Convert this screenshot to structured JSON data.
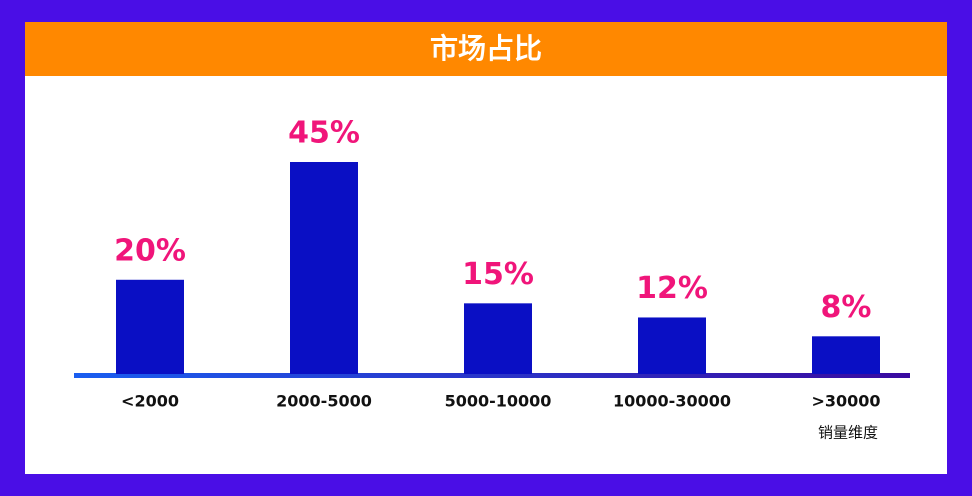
{
  "chart_data": {
    "type": "bar",
    "title": "市场占比",
    "categories": [
      "<2000",
      "2000-5000",
      "5000-10000",
      "10000-30000",
      ">30000"
    ],
    "values": [
      20,
      45,
      15,
      12,
      8
    ],
    "value_labels": [
      "20%",
      "45%",
      "15%",
      "12%",
      "8%"
    ],
    "x_label": "销量维度",
    "color": "#0a0fc4",
    "label_color": "#f0157a",
    "header_color": "#ff8800"
  }
}
